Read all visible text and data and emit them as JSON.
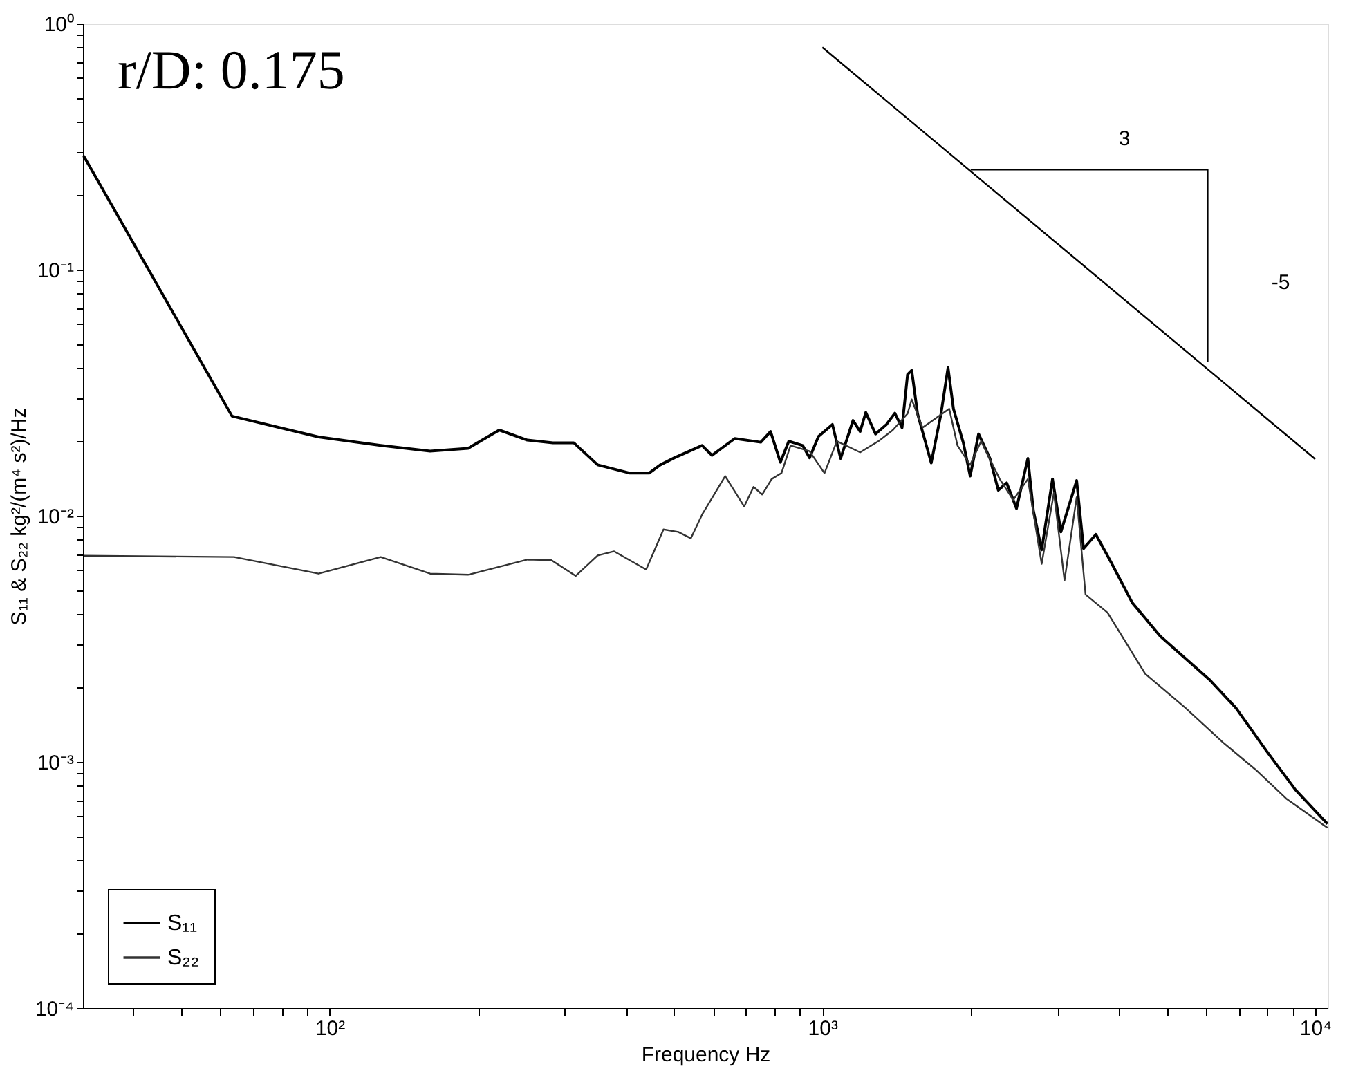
{
  "chart_data": {
    "type": "line",
    "xlabel": "Frequency  Hz",
    "ylabel": "S₁₁ & S₂₂  kg²/(m⁴ s²)/Hz",
    "log": "xy",
    "grid": false,
    "legend": "bottom left",
    "marker": "none",
    "line_style": "solid",
    "xlim": [
      31.6,
      10600
    ],
    "ylim": [
      0.0001,
      1
    ],
    "xticks": [
      {
        "value": 40,
        "label": null
      },
      {
        "value": 50,
        "label": null
      },
      {
        "value": 60,
        "label": null
      },
      {
        "value": 70,
        "label": null
      },
      {
        "value": 80,
        "label": null
      },
      {
        "value": 90,
        "label": null
      },
      {
        "value": 100,
        "label": "10²"
      },
      {
        "value": 200,
        "label": null
      },
      {
        "value": 300,
        "label": null
      },
      {
        "value": 400,
        "label": null
      },
      {
        "value": 500,
        "label": null
      },
      {
        "value": 600,
        "label": null
      },
      {
        "value": 700,
        "label": null
      },
      {
        "value": 800,
        "label": null
      },
      {
        "value": 900,
        "label": null
      },
      {
        "value": 1000,
        "label": "10³"
      },
      {
        "value": 2000,
        "label": null
      },
      {
        "value": 3000,
        "label": null
      },
      {
        "value": 4000,
        "label": null
      },
      {
        "value": 5000,
        "label": null
      },
      {
        "value": 6000,
        "label": null
      },
      {
        "value": 7000,
        "label": null
      },
      {
        "value": 8000,
        "label": null
      },
      {
        "value": 9000,
        "label": null
      },
      {
        "value": 10000,
        "label": "10⁴"
      }
    ],
    "yticks": [
      {
        "value": 0.0001,
        "label": "10⁻⁴"
      },
      {
        "value": 0.0002,
        "label": null
      },
      {
        "value": 0.0003,
        "label": null
      },
      {
        "value": 0.0004,
        "label": null
      },
      {
        "value": 0.0005,
        "label": null
      },
      {
        "value": 0.0006,
        "label": null
      },
      {
        "value": 0.0007,
        "label": null
      },
      {
        "value": 0.0008,
        "label": null
      },
      {
        "value": 0.0009,
        "label": null
      },
      {
        "value": 0.001,
        "label": "10⁻³"
      },
      {
        "value": 0.002,
        "label": null
      },
      {
        "value": 0.003,
        "label": null
      },
      {
        "value": 0.004,
        "label": null
      },
      {
        "value": 0.005,
        "label": null
      },
      {
        "value": 0.006,
        "label": null
      },
      {
        "value": 0.007,
        "label": null
      },
      {
        "value": 0.008,
        "label": null
      },
      {
        "value": 0.009,
        "label": null
      },
      {
        "value": 0.01,
        "label": "10⁻²"
      },
      {
        "value": 0.02,
        "label": null
      },
      {
        "value": 0.03,
        "label": null
      },
      {
        "value": 0.04,
        "label": null
      },
      {
        "value": 0.05,
        "label": null
      },
      {
        "value": 0.06,
        "label": null
      },
      {
        "value": 0.07,
        "label": null
      },
      {
        "value": 0.08,
        "label": null
      },
      {
        "value": 0.09,
        "label": null
      },
      {
        "value": 0.1,
        "label": "10⁻¹"
      },
      {
        "value": 0.2,
        "label": null
      },
      {
        "value": 0.3,
        "label": null
      },
      {
        "value": 0.4,
        "label": null
      },
      {
        "value": 0.5,
        "label": null
      },
      {
        "value": 0.6,
        "label": null
      },
      {
        "value": 0.7,
        "label": null
      },
      {
        "value": 0.8,
        "label": null
      },
      {
        "value": 0.9,
        "label": null
      },
      {
        "value": 1,
        "label": "10⁰"
      }
    ],
    "series": [
      {
        "name": "S₁₁",
        "color": "#000000",
        "x": [
          31.7,
          63.4,
          95,
          127,
          160,
          191,
          221,
          252,
          284,
          313,
          350,
          407,
          445,
          469,
          501,
          570,
          597,
          664,
          750,
          785,
          822,
          855,
          912,
          942,
          982,
          1048,
          1089,
          1154,
          1193,
          1225,
          1282,
          1349,
          1403,
          1451,
          1489,
          1518,
          1560,
          1663,
          1741,
          1799,
          1845,
          1932,
          1995,
          2075,
          2188,
          2275,
          2366,
          2477,
          2612,
          2680,
          2786,
          2931,
          3048,
          3281,
          3388,
          3589,
          3855,
          4255,
          4850,
          6100,
          6900,
          7960,
          9120,
          10590
        ],
        "values": [
          0.29,
          0.0254,
          0.0209,
          0.0193,
          0.0183,
          0.0188,
          0.0223,
          0.0203,
          0.0198,
          0.0198,
          0.0161,
          0.0149,
          0.0149,
          0.0161,
          0.0172,
          0.0193,
          0.0176,
          0.0206,
          0.0199,
          0.022,
          0.0165,
          0.0201,
          0.0193,
          0.0172,
          0.021,
          0.0235,
          0.0171,
          0.0244,
          0.022,
          0.0263,
          0.0215,
          0.0235,
          0.0261,
          0.0228,
          0.0375,
          0.039,
          0.026,
          0.0164,
          0.026,
          0.04,
          0.0272,
          0.0198,
          0.0145,
          0.0215,
          0.0171,
          0.0127,
          0.0136,
          0.0107,
          0.0171,
          0.0105,
          0.00727,
          0.0141,
          0.0086,
          0.0139,
          0.00736,
          0.0084,
          0.00646,
          0.00443,
          0.00324,
          0.00216,
          0.00166,
          0.00111,
          0.00077,
          0.00056
        ]
      },
      {
        "name": "S₂₂",
        "color": "#333333",
        "x": [
          31.7,
          64,
          95,
          127,
          160,
          191,
          252,
          282,
          316,
          350,
          378,
          439,
          476,
          510,
          541,
          570,
          635,
          694,
          725,
          755,
          789,
          826,
          862,
          942,
          1010,
          1070,
          1193,
          1300,
          1390,
          1489,
          1518,
          1597,
          1809,
          1880,
          1995,
          2100,
          2290,
          2440,
          2612,
          2786,
          2950,
          3100,
          3281,
          3420,
          3790,
          4520,
          5450,
          6500,
          7570,
          8730,
          10590
        ],
        "values": [
          0.00688,
          0.0068,
          0.00582,
          0.0068,
          0.00582,
          0.00576,
          0.00664,
          0.0066,
          0.0057,
          0.0069,
          0.00717,
          0.00605,
          0.0088,
          0.0086,
          0.0081,
          0.0101,
          0.0145,
          0.0109,
          0.0131,
          0.0122,
          0.0141,
          0.0149,
          0.0193,
          0.0183,
          0.0149,
          0.0201,
          0.0181,
          0.0201,
          0.0223,
          0.026,
          0.0297,
          0.0228,
          0.0272,
          0.0193,
          0.0161,
          0.0201,
          0.0141,
          0.0116,
          0.0141,
          0.00638,
          0.0124,
          0.00546,
          0.0119,
          0.00479,
          0.00404,
          0.00228,
          0.00166,
          0.0012,
          0.00093,
          0.00071,
          0.00054
        ]
      },
      {
        "color": "#000000",
        "x": [
          1000,
          10000
        ],
        "values": [
          0.8,
          0.017
        ]
      },
      {
        "color": "#000000",
        "x": [
          2000,
          6050,
          6050
        ],
        "values": [
          0.255,
          0.255,
          0.042
        ]
      }
    ],
    "annotations": [
      "r/D: 0.175",
      "3",
      "-5"
    ]
  }
}
